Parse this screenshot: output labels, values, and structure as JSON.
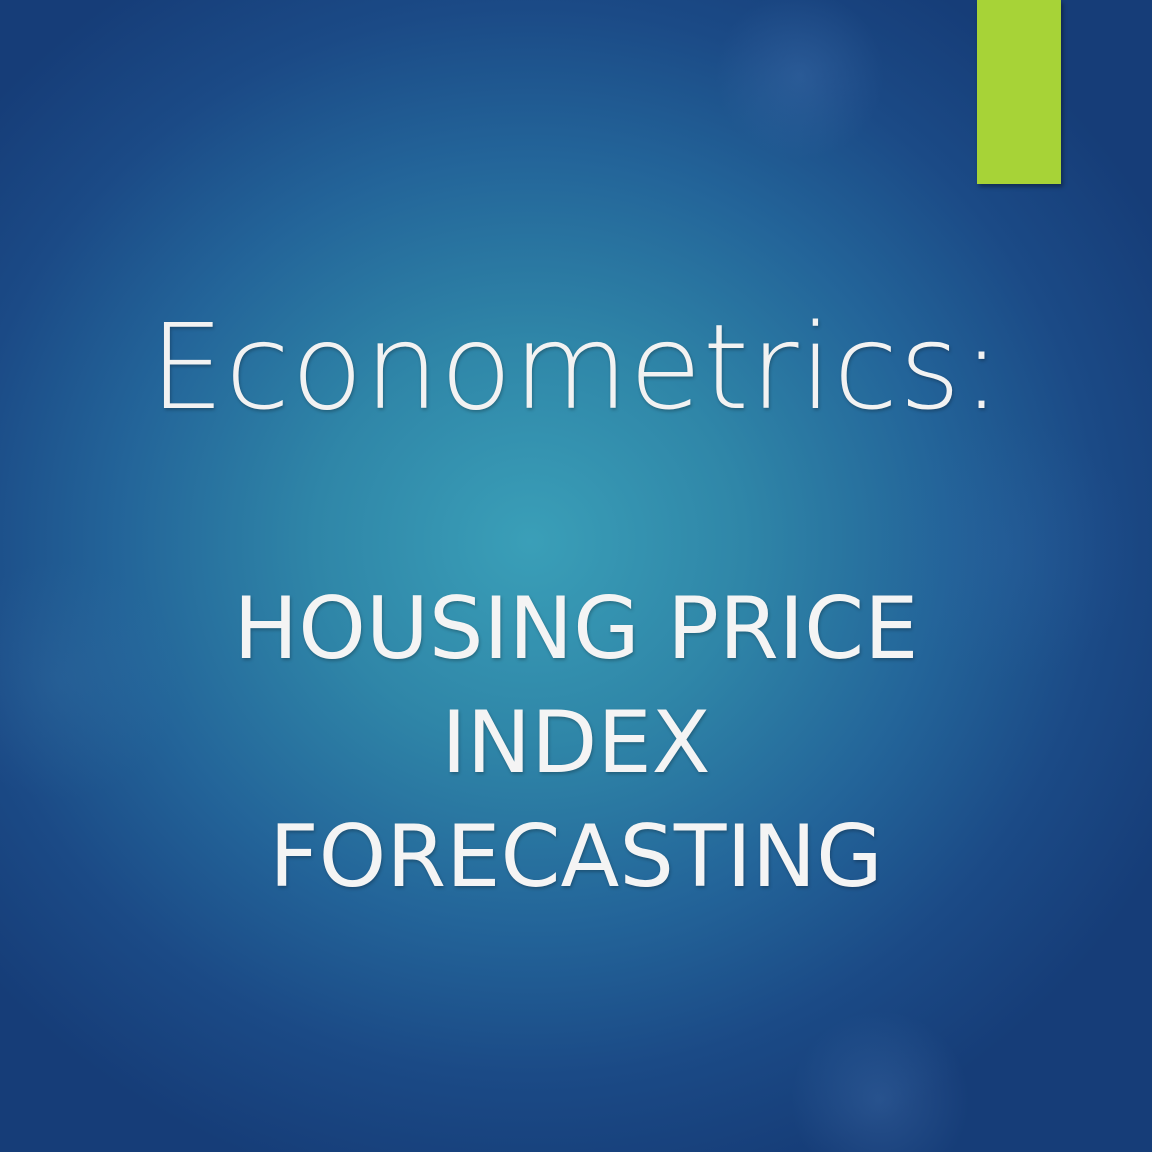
{
  "slide": {
    "background_color": "#236499",
    "accent_color": "#a7d337",
    "title": "Econometrics:",
    "subtitle_lines": [
      "HOUSING PRICE",
      "INDEX",
      "FORECASTING"
    ]
  }
}
